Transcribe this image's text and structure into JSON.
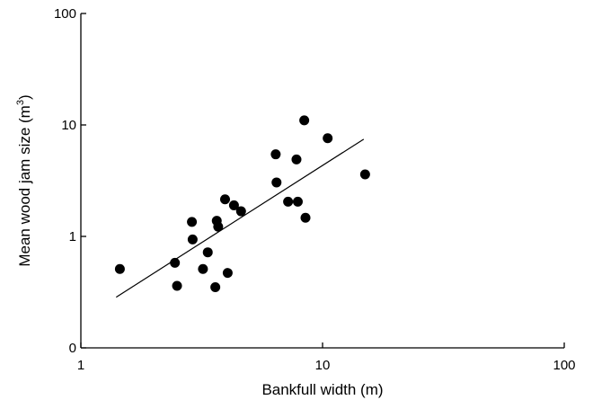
{
  "chart_data": {
    "type": "scatter",
    "xlabel": "Bankfull width (m)",
    "ylabel_main": "Mean wood jam size (m",
    "ylabel_sup": "3",
    "ylabel_close": ")",
    "x_scale": "log",
    "y_scale": "log",
    "xlim": [
      1,
      100
    ],
    "ylim": [
      0.1,
      100
    ],
    "x_ticks": [
      1,
      10,
      100
    ],
    "x_tick_labels": [
      "1",
      "10",
      "100"
    ],
    "y_ticks": [
      0.1,
      1,
      10,
      100
    ],
    "y_tick_labels": [
      "0",
      "1",
      "10",
      "100"
    ],
    "grid": false,
    "legend": "none",
    "points": [
      {
        "x": 1.45,
        "y": 0.51
      },
      {
        "x": 2.45,
        "y": 0.58
      },
      {
        "x": 2.5,
        "y": 0.36
      },
      {
        "x": 2.88,
        "y": 1.35
      },
      {
        "x": 2.9,
        "y": 0.94
      },
      {
        "x": 3.2,
        "y": 0.51
      },
      {
        "x": 3.35,
        "y": 0.72
      },
      {
        "x": 3.6,
        "y": 0.35
      },
      {
        "x": 3.65,
        "y": 1.38
      },
      {
        "x": 3.7,
        "y": 1.22
      },
      {
        "x": 3.95,
        "y": 2.15
      },
      {
        "x": 4.05,
        "y": 0.47
      },
      {
        "x": 4.3,
        "y": 1.9
      },
      {
        "x": 4.6,
        "y": 1.68
      },
      {
        "x": 6.4,
        "y": 5.45
      },
      {
        "x": 6.45,
        "y": 3.05
      },
      {
        "x": 7.2,
        "y": 2.05
      },
      {
        "x": 7.8,
        "y": 4.9
      },
      {
        "x": 7.9,
        "y": 2.05
      },
      {
        "x": 8.4,
        "y": 11.0
      },
      {
        "x": 8.5,
        "y": 1.47
      },
      {
        "x": 10.5,
        "y": 7.6
      },
      {
        "x": 15.0,
        "y": 3.6
      }
    ],
    "fit_line": {
      "x": [
        1.4,
        14.8
      ],
      "y": [
        0.285,
        7.45
      ]
    }
  }
}
